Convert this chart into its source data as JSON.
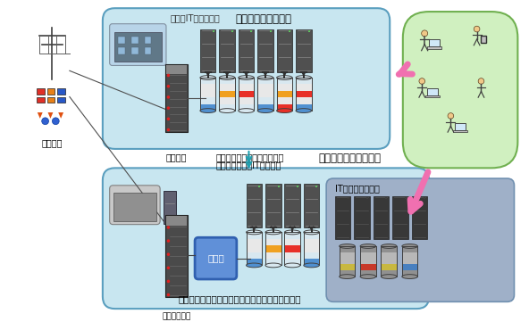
{
  "top_box_label": "従来データセンター",
  "top_box_sublabel": "全てのIT機器が稼働",
  "bottom_box_label": "今回のデータセンター",
  "bottom_box_sublabel1": "サービス無停止のまま電力供",
  "bottom_box_sublabel2": "給量に基づいたIT機器制御",
  "bottom_inner_label": "IT機器の電源停止",
  "bottom_caption": "レプリカの活用によりデータアクセス機能を継続",
  "label_denki": "電力会社",
  "label_dengen": "電源装置",
  "label_chokuryuu": "直流電源装置",
  "label_chikudenchi": "蓄電池",
  "bg_color": "#ffffff",
  "top_box_fill": "#c8e6f0",
  "bottom_box_fill": "#c8e6f0",
  "box_edge": "#5b9fbf",
  "inner_box_fill": "#9fb0c8",
  "inner_box_edge": "#7090b0",
  "arrow_pink": "#f070b0",
  "arrow_teal": "#20a0b0",
  "server_dark": "#4a4a4a",
  "server_mid": "#888888",
  "cloud_fill": "#d0f0c0",
  "cloud_edge": "#70b050",
  "battery_fill": "#6090d8",
  "battery_edge": "#3060b0"
}
